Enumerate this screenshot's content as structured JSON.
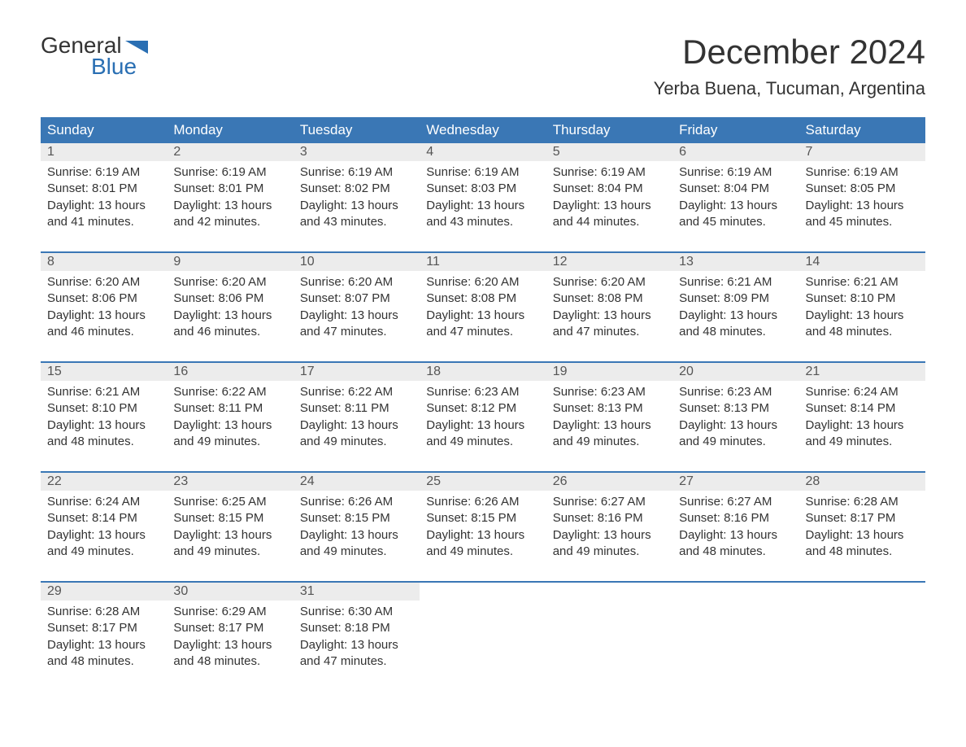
{
  "logo": {
    "word1": "General",
    "word2": "Blue",
    "icon_color": "#2a6fb3"
  },
  "title": "December 2024",
  "location": "Yerba Buena, Tucuman, Argentina",
  "colors": {
    "header_bg": "#3a77b5",
    "header_text": "#ffffff",
    "daynum_bg": "#ececec",
    "rule": "#3a77b5",
    "text": "#333333"
  },
  "day_headers": [
    "Sunday",
    "Monday",
    "Tuesday",
    "Wednesday",
    "Thursday",
    "Friday",
    "Saturday"
  ],
  "weeks": [
    [
      {
        "n": "1",
        "sunrise": "6:19 AM",
        "sunset": "8:01 PM",
        "daylight": "13 hours and 41 minutes."
      },
      {
        "n": "2",
        "sunrise": "6:19 AM",
        "sunset": "8:01 PM",
        "daylight": "13 hours and 42 minutes."
      },
      {
        "n": "3",
        "sunrise": "6:19 AM",
        "sunset": "8:02 PM",
        "daylight": "13 hours and 43 minutes."
      },
      {
        "n": "4",
        "sunrise": "6:19 AM",
        "sunset": "8:03 PM",
        "daylight": "13 hours and 43 minutes."
      },
      {
        "n": "5",
        "sunrise": "6:19 AM",
        "sunset": "8:04 PM",
        "daylight": "13 hours and 44 minutes."
      },
      {
        "n": "6",
        "sunrise": "6:19 AM",
        "sunset": "8:04 PM",
        "daylight": "13 hours and 45 minutes."
      },
      {
        "n": "7",
        "sunrise": "6:19 AM",
        "sunset": "8:05 PM",
        "daylight": "13 hours and 45 minutes."
      }
    ],
    [
      {
        "n": "8",
        "sunrise": "6:20 AM",
        "sunset": "8:06 PM",
        "daylight": "13 hours and 46 minutes."
      },
      {
        "n": "9",
        "sunrise": "6:20 AM",
        "sunset": "8:06 PM",
        "daylight": "13 hours and 46 minutes."
      },
      {
        "n": "10",
        "sunrise": "6:20 AM",
        "sunset": "8:07 PM",
        "daylight": "13 hours and 47 minutes."
      },
      {
        "n": "11",
        "sunrise": "6:20 AM",
        "sunset": "8:08 PM",
        "daylight": "13 hours and 47 minutes."
      },
      {
        "n": "12",
        "sunrise": "6:20 AM",
        "sunset": "8:08 PM",
        "daylight": "13 hours and 47 minutes."
      },
      {
        "n": "13",
        "sunrise": "6:21 AM",
        "sunset": "8:09 PM",
        "daylight": "13 hours and 48 minutes."
      },
      {
        "n": "14",
        "sunrise": "6:21 AM",
        "sunset": "8:10 PM",
        "daylight": "13 hours and 48 minutes."
      }
    ],
    [
      {
        "n": "15",
        "sunrise": "6:21 AM",
        "sunset": "8:10 PM",
        "daylight": "13 hours and 48 minutes."
      },
      {
        "n": "16",
        "sunrise": "6:22 AM",
        "sunset": "8:11 PM",
        "daylight": "13 hours and 49 minutes."
      },
      {
        "n": "17",
        "sunrise": "6:22 AM",
        "sunset": "8:11 PM",
        "daylight": "13 hours and 49 minutes."
      },
      {
        "n": "18",
        "sunrise": "6:23 AM",
        "sunset": "8:12 PM",
        "daylight": "13 hours and 49 minutes."
      },
      {
        "n": "19",
        "sunrise": "6:23 AM",
        "sunset": "8:13 PM",
        "daylight": "13 hours and 49 minutes."
      },
      {
        "n": "20",
        "sunrise": "6:23 AM",
        "sunset": "8:13 PM",
        "daylight": "13 hours and 49 minutes."
      },
      {
        "n": "21",
        "sunrise": "6:24 AM",
        "sunset": "8:14 PM",
        "daylight": "13 hours and 49 minutes."
      }
    ],
    [
      {
        "n": "22",
        "sunrise": "6:24 AM",
        "sunset": "8:14 PM",
        "daylight": "13 hours and 49 minutes."
      },
      {
        "n": "23",
        "sunrise": "6:25 AM",
        "sunset": "8:15 PM",
        "daylight": "13 hours and 49 minutes."
      },
      {
        "n": "24",
        "sunrise": "6:26 AM",
        "sunset": "8:15 PM",
        "daylight": "13 hours and 49 minutes."
      },
      {
        "n": "25",
        "sunrise": "6:26 AM",
        "sunset": "8:15 PM",
        "daylight": "13 hours and 49 minutes."
      },
      {
        "n": "26",
        "sunrise": "6:27 AM",
        "sunset": "8:16 PM",
        "daylight": "13 hours and 49 minutes."
      },
      {
        "n": "27",
        "sunrise": "6:27 AM",
        "sunset": "8:16 PM",
        "daylight": "13 hours and 48 minutes."
      },
      {
        "n": "28",
        "sunrise": "6:28 AM",
        "sunset": "8:17 PM",
        "daylight": "13 hours and 48 minutes."
      }
    ],
    [
      {
        "n": "29",
        "sunrise": "6:28 AM",
        "sunset": "8:17 PM",
        "daylight": "13 hours and 48 minutes."
      },
      {
        "n": "30",
        "sunrise": "6:29 AM",
        "sunset": "8:17 PM",
        "daylight": "13 hours and 48 minutes."
      },
      {
        "n": "31",
        "sunrise": "6:30 AM",
        "sunset": "8:18 PM",
        "daylight": "13 hours and 47 minutes."
      },
      null,
      null,
      null,
      null
    ]
  ],
  "labels": {
    "sunrise": "Sunrise: ",
    "sunset": "Sunset: ",
    "daylight": "Daylight: "
  }
}
